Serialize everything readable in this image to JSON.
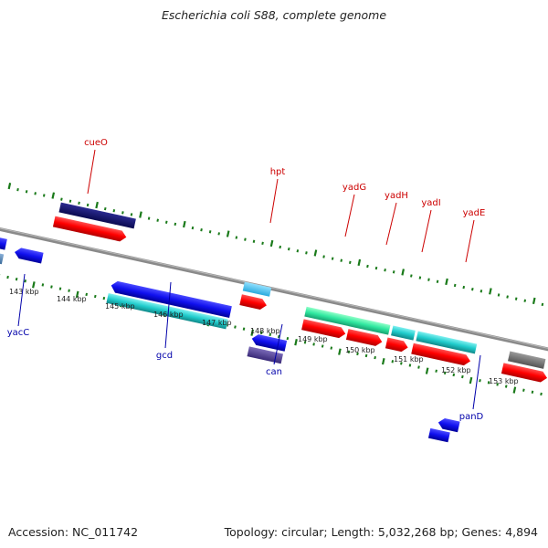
{
  "title": "Escherichia coli S88, complete genome",
  "footer": {
    "accession": "Accession: NC_011742",
    "topology": "Topology: circular; Length: 5,032,268 bp; Genes: 4,894"
  },
  "colors": {
    "forward_label": "#cc0000",
    "reverse_label": "#0000aa",
    "tick": "#1a7a1a",
    "backbone": "#8a8a8a"
  },
  "kbp_labels": [
    "143 kbp",
    "144 kbp",
    "145 kbp",
    "146 kbp",
    "147 kbp",
    "148 kbp",
    "149 kbp",
    "150 kbp",
    "151 kbp",
    "152 kbp",
    "153 kbp"
  ],
  "forward_gene_labels": [
    "cueO",
    "hpt",
    "yadG",
    "yadH",
    "yadI",
    "yadE"
  ],
  "reverse_gene_labels": [
    "yacC",
    "gcd",
    "can",
    "panD"
  ]
}
